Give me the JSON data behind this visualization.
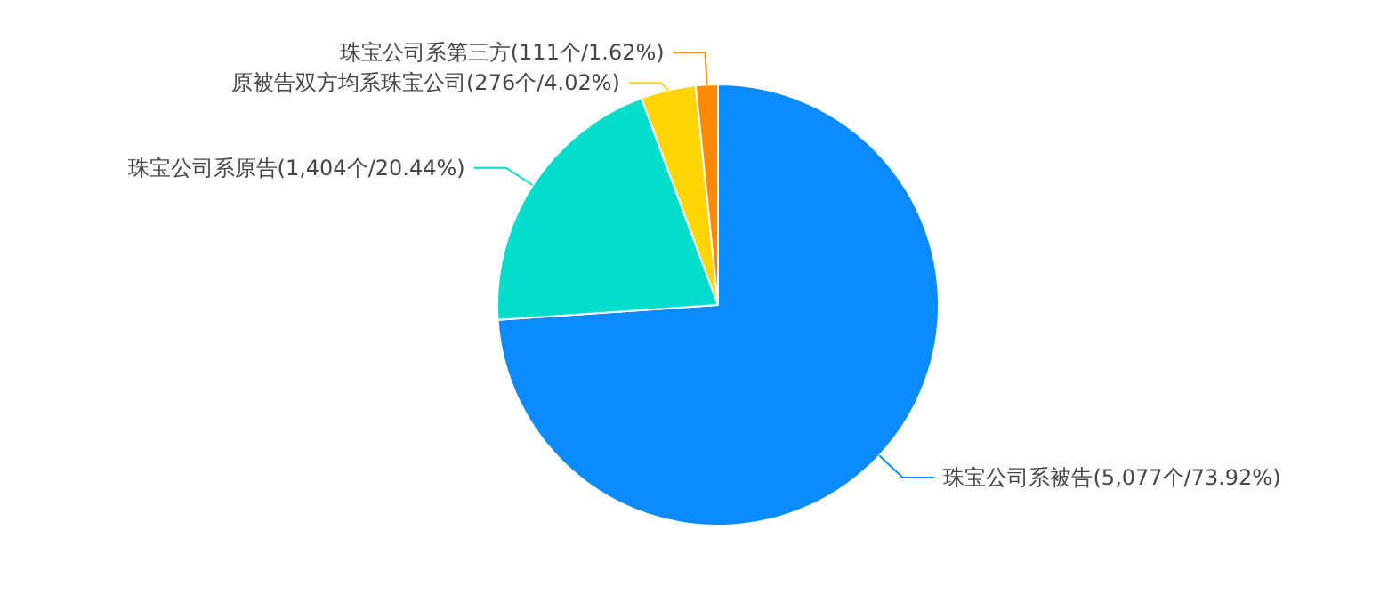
{
  "chart_data": {
    "type": "pie",
    "categories": [
      "珠宝公司系被告",
      "珠宝公司系原告",
      "原被告双方均系珠宝公司",
      "珠宝公司系第三方"
    ],
    "values": [
      5077,
      1404,
      276,
      111
    ],
    "value_labels": [
      "(5,077个/73.92%)",
      "(1,404个/20.44%)",
      "(276个/4.02%)",
      "(111个/1.62%)"
    ],
    "colors": [
      "#0b8bff",
      "#04dccc",
      "#ffd403",
      "#ff8a00"
    ],
    "legend": false
  }
}
